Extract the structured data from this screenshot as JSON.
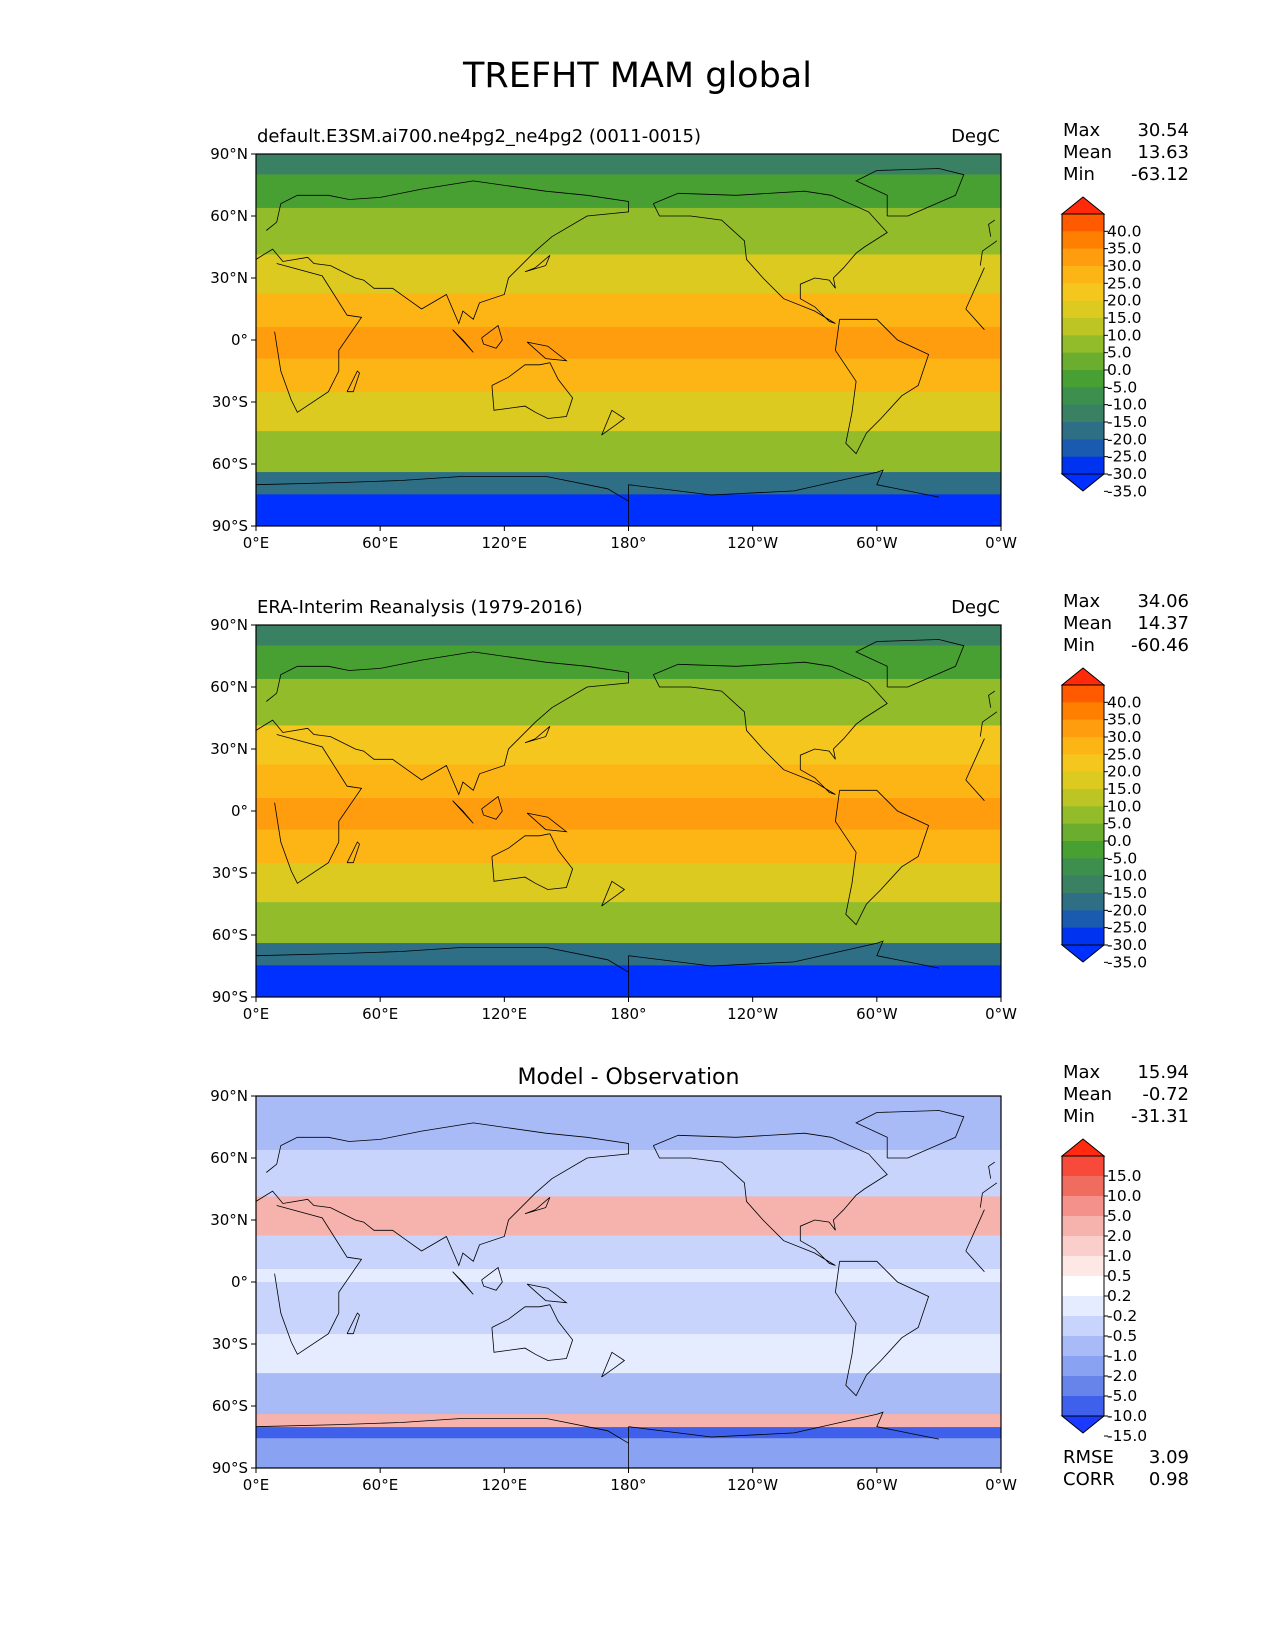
{
  "title": "TREFHT MAM global",
  "axes": {
    "lat_ticks": [
      "90°N",
      "60°N",
      "30°N",
      "0°",
      "30°S",
      "60°S",
      "90°S"
    ],
    "lon_ticks": [
      "0°E",
      "60°E",
      "120°E",
      "180°",
      "120°W",
      "60°W",
      "0°W"
    ]
  },
  "chart_data": [
    {
      "type": "heatmap",
      "left_title": "default.E3SM.ai700.ne4pg2_ne4pg2 (0011-0015)",
      "center_title": "",
      "units": "DegC",
      "stats": [
        {
          "label": "Max",
          "value": "30.54"
        },
        {
          "label": "Mean",
          "value": "13.63"
        },
        {
          "label": "Min",
          "value": "-63.12"
        }
      ],
      "colorbar_levels": [
        "40.0",
        "35.0",
        "30.0",
        "25.0",
        "20.0",
        "15.0",
        "10.0",
        "5.0",
        "0.0",
        "-5.0",
        "-10.0",
        "-15.0",
        "-20.0",
        "-25.0",
        "-30.0",
        "-35.0"
      ],
      "colorbar_colors": [
        "#ff2a0a",
        "#ff5a00",
        "#ff8000",
        "#ff9d0f",
        "#fdb515",
        "#f5c61e",
        "#dcca20",
        "#bcc523",
        "#93bc2b",
        "#6aad2f",
        "#48a032",
        "#3c8f4d",
        "#3a8063",
        "#2e6f86",
        "#1a5bb0",
        "#0033f0",
        "#0030ff"
      ],
      "map_lat_rows": [
        "75-90N",
        "60-75N",
        "45-60N",
        "30-45N",
        "15-30N",
        "0-15N",
        "0-15S",
        "15-30S",
        "30-45S",
        "45-60S",
        "60-75S",
        "75-90S"
      ],
      "map_row_levels": [
        -17.5,
        -7.5,
        2.5,
        12.5,
        22.5,
        27.5,
        27.5,
        22.5,
        12.5,
        2.5,
        -22.5,
        -40
      ]
    },
    {
      "type": "heatmap",
      "left_title": "ERA-Interim Reanalysis (1979-2016)",
      "center_title": "",
      "units": "DegC",
      "stats": [
        {
          "label": "Max",
          "value": "34.06"
        },
        {
          "label": "Mean",
          "value": "14.37"
        },
        {
          "label": "Min",
          "value": "-60.46"
        }
      ],
      "colorbar_levels": [
        "40.0",
        "35.0",
        "30.0",
        "25.0",
        "20.0",
        "15.0",
        "10.0",
        "5.0",
        "0.0",
        "-5.0",
        "-10.0",
        "-15.0",
        "-20.0",
        "-25.0",
        "-30.0",
        "-35.0"
      ],
      "colorbar_colors": [
        "#ff2a0a",
        "#ff5a00",
        "#ff8000",
        "#ff9d0f",
        "#fdb515",
        "#f5c61e",
        "#dcca20",
        "#bcc523",
        "#93bc2b",
        "#6aad2f",
        "#48a032",
        "#3c8f4d",
        "#3a8063",
        "#2e6f86",
        "#1a5bb0",
        "#0033f0",
        "#0030ff"
      ],
      "map_lat_rows": [
        "75-90N",
        "60-75N",
        "45-60N",
        "30-45N",
        "15-30N",
        "0-15N",
        "0-15S",
        "15-30S",
        "30-45S",
        "45-60S",
        "60-75S",
        "75-90S"
      ],
      "map_row_levels": [
        -17.5,
        -7.5,
        2.5,
        17.5,
        22.5,
        27.5,
        27.5,
        22.5,
        12.5,
        2.5,
        -22.5,
        -40
      ]
    },
    {
      "type": "heatmap",
      "left_title": "",
      "center_title": "Model - Observation",
      "units": "",
      "stats": [
        {
          "label": "Max",
          "value": "15.94"
        },
        {
          "label": "Mean",
          "value": "-0.72"
        },
        {
          "label": "Min",
          "value": "-31.31"
        }
      ],
      "colorbar_levels": [
        "15.0",
        "10.0",
        "5.0",
        "2.0",
        "1.0",
        "0.5",
        "0.2",
        "-0.2",
        "-0.5",
        "-1.0",
        "-2.0",
        "-5.0",
        "-10.0",
        "-15.0"
      ],
      "colorbar_colors": [
        "#ff2a10",
        "#f84a3a",
        "#f06c5e",
        "#f3918a",
        "#f6b2ac",
        "#facfcb",
        "#fde8e6",
        "#ffffff",
        "#e6ecff",
        "#c8d4fc",
        "#a8bbf7",
        "#8aa2f2",
        "#6684ea",
        "#3f60ea",
        "#1a3bff"
      ],
      "footer": [
        {
          "label": "RMSE",
          "value": "3.09"
        },
        {
          "label": "CORR",
          "value": "0.98"
        }
      ],
      "map_lat_rows": [
        "75-90N",
        "60-75N",
        "45-60N",
        "30-45N",
        "15-30N",
        "0-15N",
        "0-15S",
        "15-30S",
        "30-45S",
        "45-60S",
        "60-75S",
        "75-90S"
      ],
      "map_row_levels": [
        -2,
        -2,
        -1,
        1,
        -1,
        -0.5,
        -1,
        -1,
        -0.5,
        -2,
        1,
        -5
      ]
    }
  ]
}
